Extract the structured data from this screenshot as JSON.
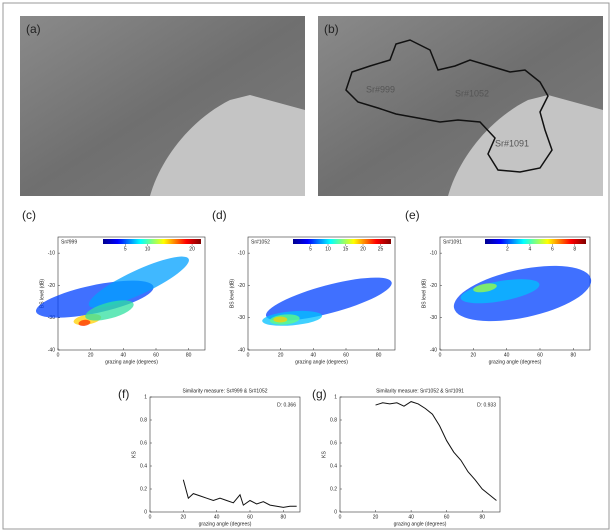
{
  "panels": {
    "a": {
      "label": "(a)"
    },
    "b": {
      "label": "(b)",
      "regions": [
        "Sr#999",
        "Sr#1052",
        "Sr#1091"
      ]
    }
  },
  "chart_data": [
    {
      "type": "density",
      "label": "(c)",
      "title": "Sr#999",
      "colorbar_ticks": [
        5,
        10,
        20
      ],
      "colorbar_lim": [
        0,
        22
      ],
      "xlabel": "grazing angle (degrees)",
      "ylabel": "BS level (dB)",
      "xlim": [
        0,
        90
      ],
      "xticks": [
        0,
        20,
        40,
        60,
        80
      ],
      "ylim": [
        -40,
        -5
      ],
      "yticks": [
        -40,
        -30,
        -20,
        -10
      ]
    },
    {
      "type": "density",
      "label": "(d)",
      "title": "Sr#1052",
      "colorbar_ticks": [
        5,
        10,
        15,
        20,
        25
      ],
      "colorbar_lim": [
        0,
        28
      ],
      "xlabel": "grazing angle (degrees)",
      "ylabel": "BS level (dB)",
      "xlim": [
        0,
        90
      ],
      "xticks": [
        0,
        20,
        40,
        60,
        80
      ],
      "ylim": [
        -40,
        -5
      ],
      "yticks": [
        -40,
        -30,
        -20,
        -10
      ]
    },
    {
      "type": "density",
      "label": "(e)",
      "title": "Sr#1091",
      "colorbar_ticks": [
        2,
        4,
        6,
        8
      ],
      "colorbar_lim": [
        0,
        9
      ],
      "xlabel": "grazing angle (degrees)",
      "ylabel": "BS level (dB)",
      "xlim": [
        0,
        90
      ],
      "xticks": [
        0,
        20,
        40,
        60,
        80
      ],
      "ylim": [
        -40,
        -5
      ],
      "yticks": [
        -40,
        -30,
        -20,
        -10
      ]
    },
    {
      "type": "line",
      "label": "(f)",
      "title": "Similarity measure: Sr#999 & Sr#1052",
      "annotation": "D: 0.366",
      "xlabel": "grazing angle (degrees)",
      "ylabel": "KS",
      "xlim": [
        0,
        90
      ],
      "xticks": [
        0,
        20,
        40,
        60,
        80
      ],
      "ylim": [
        0,
        1
      ],
      "yticks": [
        0,
        0.2,
        0.4,
        0.6,
        0.8,
        1
      ],
      "x": [
        20,
        23,
        26,
        30,
        34,
        38,
        42,
        46,
        50,
        54,
        56,
        60,
        64,
        68,
        72,
        76,
        80,
        84,
        88
      ],
      "values": [
        0.28,
        0.12,
        0.16,
        0.14,
        0.12,
        0.1,
        0.12,
        0.1,
        0.08,
        0.15,
        0.06,
        0.1,
        0.07,
        0.09,
        0.06,
        0.05,
        0.04,
        0.05,
        0.05
      ],
      "color": "#111111"
    },
    {
      "type": "line",
      "label": "(g)",
      "title": "Similarity measure: Sr#1052 & Sr#1091",
      "annotation": "D: 0.933",
      "xlabel": "grazing angle (degrees)",
      "ylabel": "KS",
      "xlim": [
        0,
        90
      ],
      "xticks": [
        0,
        20,
        40,
        60,
        80
      ],
      "ylim": [
        0,
        1
      ],
      "yticks": [
        0,
        0.2,
        0.4,
        0.6,
        0.8,
        1
      ],
      "x": [
        20,
        24,
        28,
        32,
        36,
        40,
        44,
        48,
        52,
        56,
        60,
        64,
        68,
        72,
        76,
        80,
        84,
        88
      ],
      "values": [
        0.93,
        0.95,
        0.94,
        0.95,
        0.92,
        0.96,
        0.94,
        0.9,
        0.85,
        0.75,
        0.62,
        0.52,
        0.45,
        0.35,
        0.28,
        0.2,
        0.15,
        0.1
      ],
      "color": "#111111"
    }
  ]
}
